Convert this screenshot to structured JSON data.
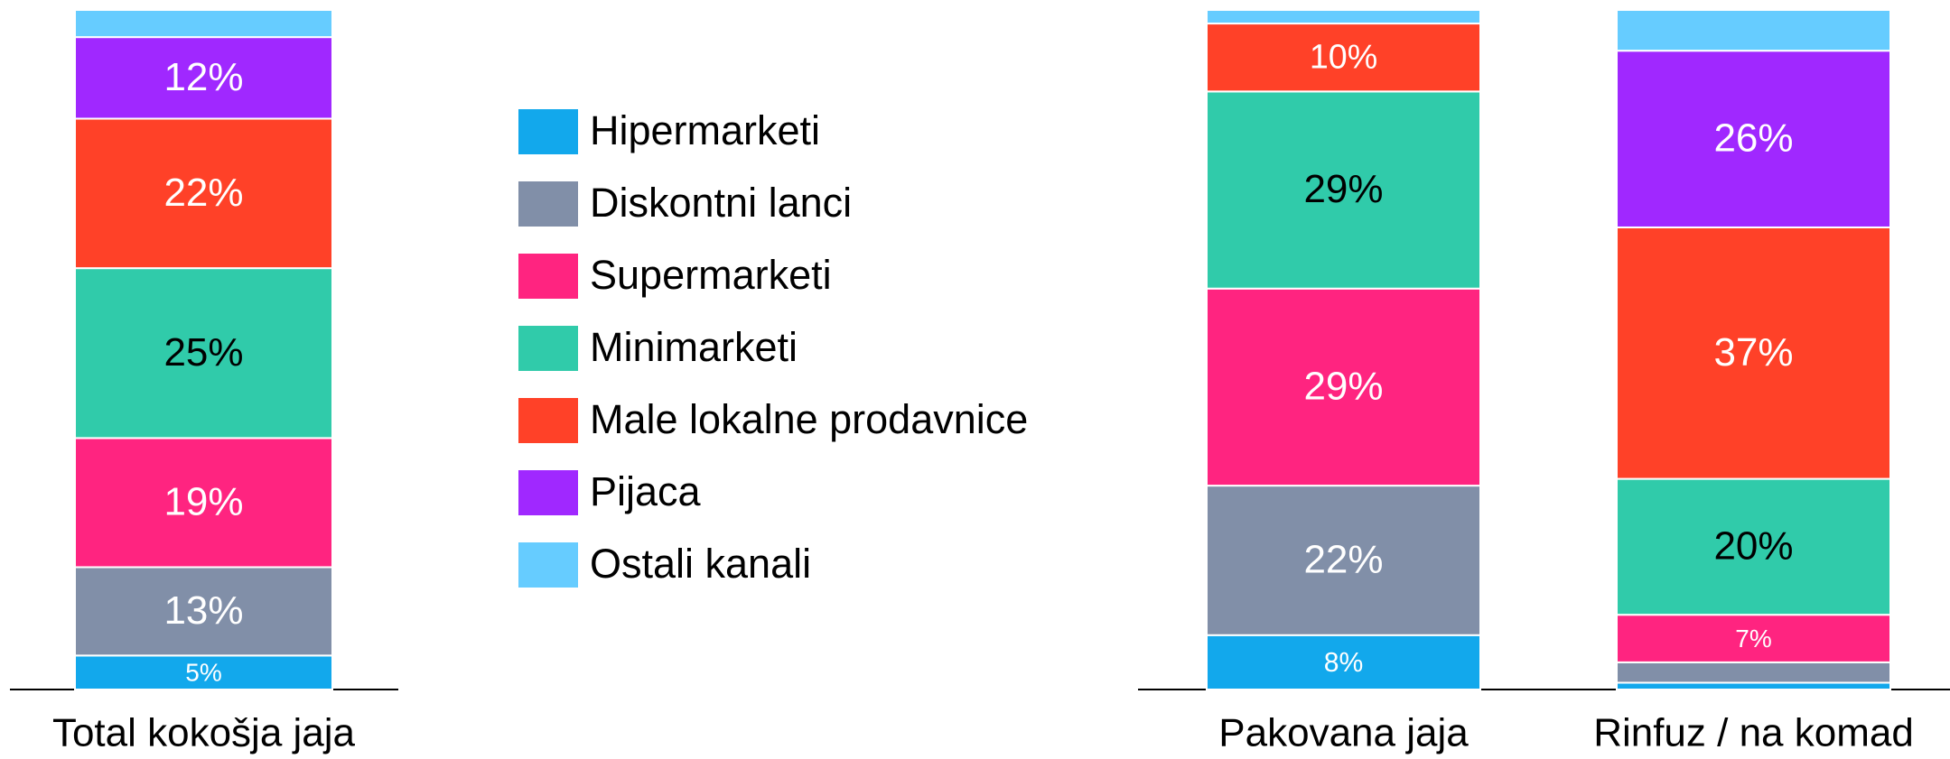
{
  "chart_data": {
    "type": "bar",
    "stacked": true,
    "categories": [
      "Total kokošja jaja",
      "Pakovana jaja",
      "Rinfuz / na komad"
    ],
    "ylim": [
      0,
      100
    ],
    "series": [
      {
        "name": "Hipermarketi",
        "color": "#12a8ec",
        "values": [
          5,
          8,
          1
        ],
        "value_labels": [
          "5%",
          "8%",
          null
        ],
        "label_color": "#ffffff"
      },
      {
        "name": "Diskontni lanci",
        "color": "#818fa8",
        "values": [
          13,
          22,
          3
        ],
        "value_labels": [
          "13%",
          "22%",
          null
        ],
        "label_color": "#ffffff"
      },
      {
        "name": "Supermarketi",
        "color": "#ff2480",
        "values": [
          19,
          29,
          7
        ],
        "value_labels": [
          "19%",
          "29%",
          "7%"
        ],
        "label_color": "#ffffff"
      },
      {
        "name": "Minimarketi",
        "color": "#30cbaa",
        "values": [
          25,
          29,
          20
        ],
        "value_labels": [
          "25%",
          "29%",
          "20%"
        ],
        "label_color": "#000000"
      },
      {
        "name": "Male lokalne prodavnice",
        "color": "#ff4128",
        "values": [
          22,
          10,
          37
        ],
        "value_labels": [
          "22%",
          "10%",
          "37%"
        ],
        "label_color": "#ffffff"
      },
      {
        "name": "Pijaca",
        "color": "#a028ff",
        "values": [
          12,
          0,
          26
        ],
        "value_labels": [
          "12%",
          null,
          "26%"
        ],
        "label_color": "#ffffff"
      },
      {
        "name": "Ostali kanali",
        "color": "#66ccff",
        "values": [
          4,
          2,
          6
        ],
        "value_labels": [
          null,
          null,
          null
        ],
        "label_color": "#ffffff"
      }
    ]
  }
}
